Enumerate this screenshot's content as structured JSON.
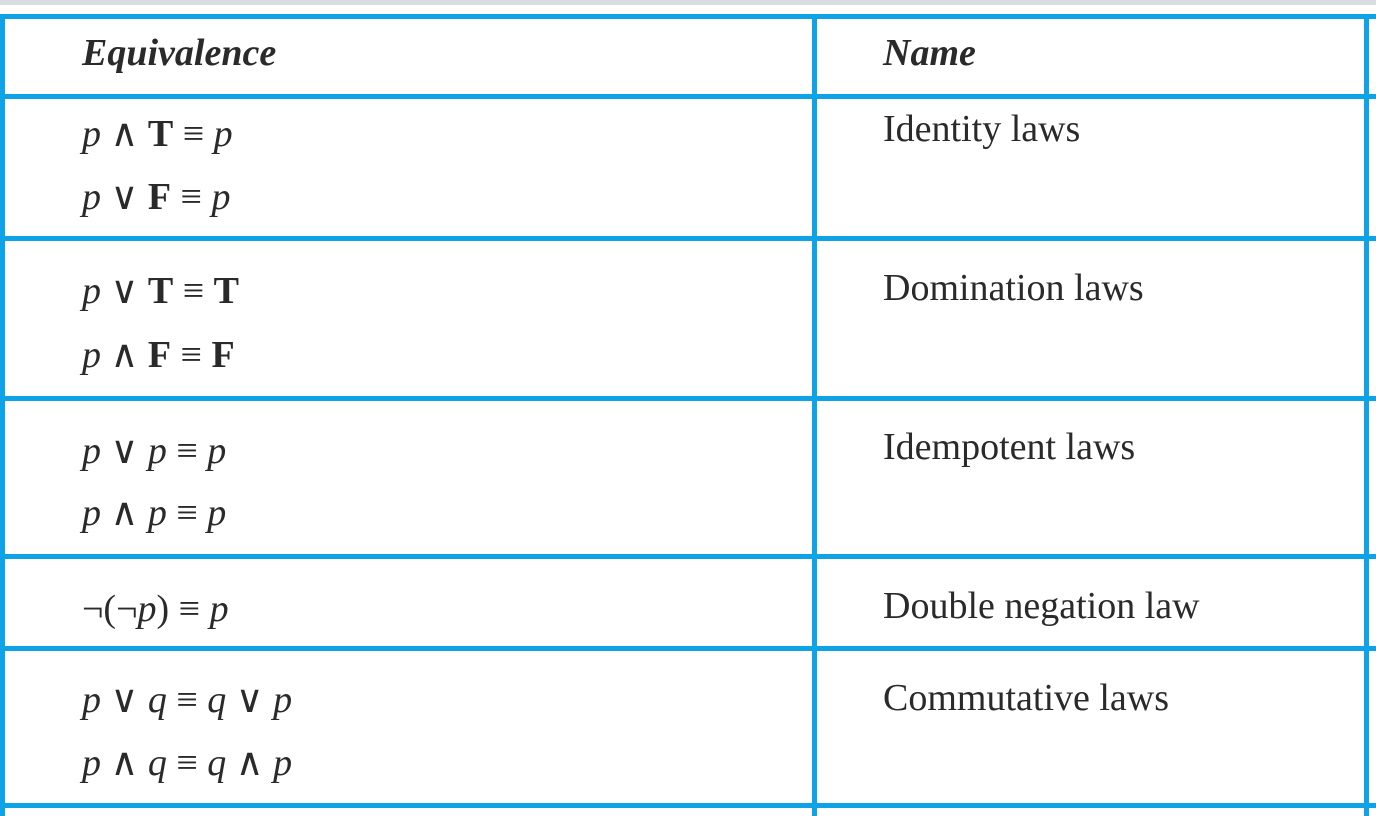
{
  "table": {
    "header": {
      "equivalence": "Equivalence",
      "name": "Name"
    },
    "rows": [
      {
        "lines": [
          [
            {
              "t": "p",
              "s": "i"
            },
            {
              "t": " ∧ "
            },
            {
              "t": "T",
              "s": "b"
            },
            {
              "t": " ≡ "
            },
            {
              "t": "p",
              "s": "i"
            }
          ],
          [
            {
              "t": "p",
              "s": "i"
            },
            {
              "t": " ∨ "
            },
            {
              "t": "F",
              "s": "b"
            },
            {
              "t": " ≡ "
            },
            {
              "t": "p",
              "s": "i"
            }
          ]
        ],
        "name": "Identity laws"
      },
      {
        "lines": [
          [
            {
              "t": "p",
              "s": "i"
            },
            {
              "t": " ∨ "
            },
            {
              "t": "T",
              "s": "b"
            },
            {
              "t": " ≡ "
            },
            {
              "t": "T",
              "s": "b"
            }
          ],
          [
            {
              "t": "p",
              "s": "i"
            },
            {
              "t": " ∧ "
            },
            {
              "t": "F",
              "s": "b"
            },
            {
              "t": " ≡ "
            },
            {
              "t": "F",
              "s": "b"
            }
          ]
        ],
        "name": "Domination laws"
      },
      {
        "lines": [
          [
            {
              "t": "p",
              "s": "i"
            },
            {
              "t": " ∨ "
            },
            {
              "t": "p",
              "s": "i"
            },
            {
              "t": " ≡ "
            },
            {
              "t": "p",
              "s": "i"
            }
          ],
          [
            {
              "t": "p",
              "s": "i"
            },
            {
              "t": " ∧ "
            },
            {
              "t": "p",
              "s": "i"
            },
            {
              "t": " ≡ "
            },
            {
              "t": "p",
              "s": "i"
            }
          ]
        ],
        "name": "Idempotent laws"
      },
      {
        "lines": [
          [
            {
              "t": "¬(¬"
            },
            {
              "t": "p",
              "s": "i"
            },
            {
              "t": ") ≡ "
            },
            {
              "t": "p",
              "s": "i"
            }
          ]
        ],
        "name": "Double negation law"
      },
      {
        "lines": [
          [
            {
              "t": "p",
              "s": "i"
            },
            {
              "t": " ∨ "
            },
            {
              "t": "q",
              "s": "i"
            },
            {
              "t": " ≡ "
            },
            {
              "t": "q",
              "s": "i"
            },
            {
              "t": " ∨ "
            },
            {
              "t": "p",
              "s": "i"
            }
          ],
          [
            {
              "t": "p",
              "s": "i"
            },
            {
              "t": " ∧ "
            },
            {
              "t": "q",
              "s": "i"
            },
            {
              "t": " ≡ "
            },
            {
              "t": "q",
              "s": "i"
            },
            {
              "t": " ∧ "
            },
            {
              "t": "p",
              "s": "i"
            }
          ]
        ],
        "name": "Commutative laws"
      }
    ]
  },
  "colors": {
    "border": "#0ea3e6",
    "text": "#2a2a2a",
    "top_rule": "#d9dde2"
  }
}
